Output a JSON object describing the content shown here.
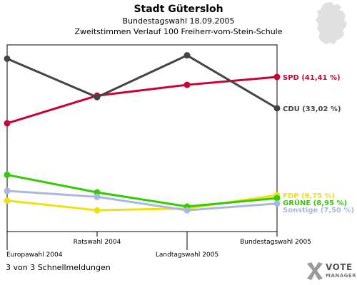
{
  "header": {
    "title": "Stadt Gütersloh",
    "subtitle1": "Bundestagswahl 18.09.2005",
    "subtitle2": "Zweitstimmen Verlauf 100 Freiherr-vom-Stein-Schule"
  },
  "footer": {
    "text": "3 von 3 Schnellmeldungen"
  },
  "logo": {
    "line1": "VOTE",
    "line2": "MANAGER",
    "icon": "vote-x-icon"
  },
  "map": {
    "icon": "germany-map-icon",
    "color": "#e0e0e0"
  },
  "chart_data": {
    "type": "line",
    "categories": [
      "Europawahl 2004",
      "Ratswahl 2004",
      "Landtagswahl 2005",
      "Bundestagswahl 2005"
    ],
    "ylim": [
      0,
      50
    ],
    "grid": false,
    "series": [
      {
        "name": "SPD",
        "label": "SPD (41,41 %)",
        "color": "#cc0033",
        "values": [
          29.0,
          36.4,
          39.3,
          41.41
        ]
      },
      {
        "name": "CDU",
        "label": "CDU (33,02 %)",
        "color": "#444444",
        "values": [
          46.3,
          36.0,
          47.2,
          33.02
        ]
      },
      {
        "name": "FDP",
        "label": "FDP (9,75 %)",
        "color": "#f0e010",
        "values": [
          8.3,
          5.7,
          6.2,
          9.75
        ]
      },
      {
        "name": "GRÜNE",
        "label": "GRÜNE (8,95 %)",
        "color": "#33cc00",
        "values": [
          15.2,
          10.5,
          6.7,
          8.95
        ]
      },
      {
        "name": "Sonstige",
        "label": "Sonstige (7,50 %)",
        "color": "#aab8e0",
        "values": [
          10.9,
          9.3,
          5.7,
          7.5
        ]
      }
    ]
  }
}
